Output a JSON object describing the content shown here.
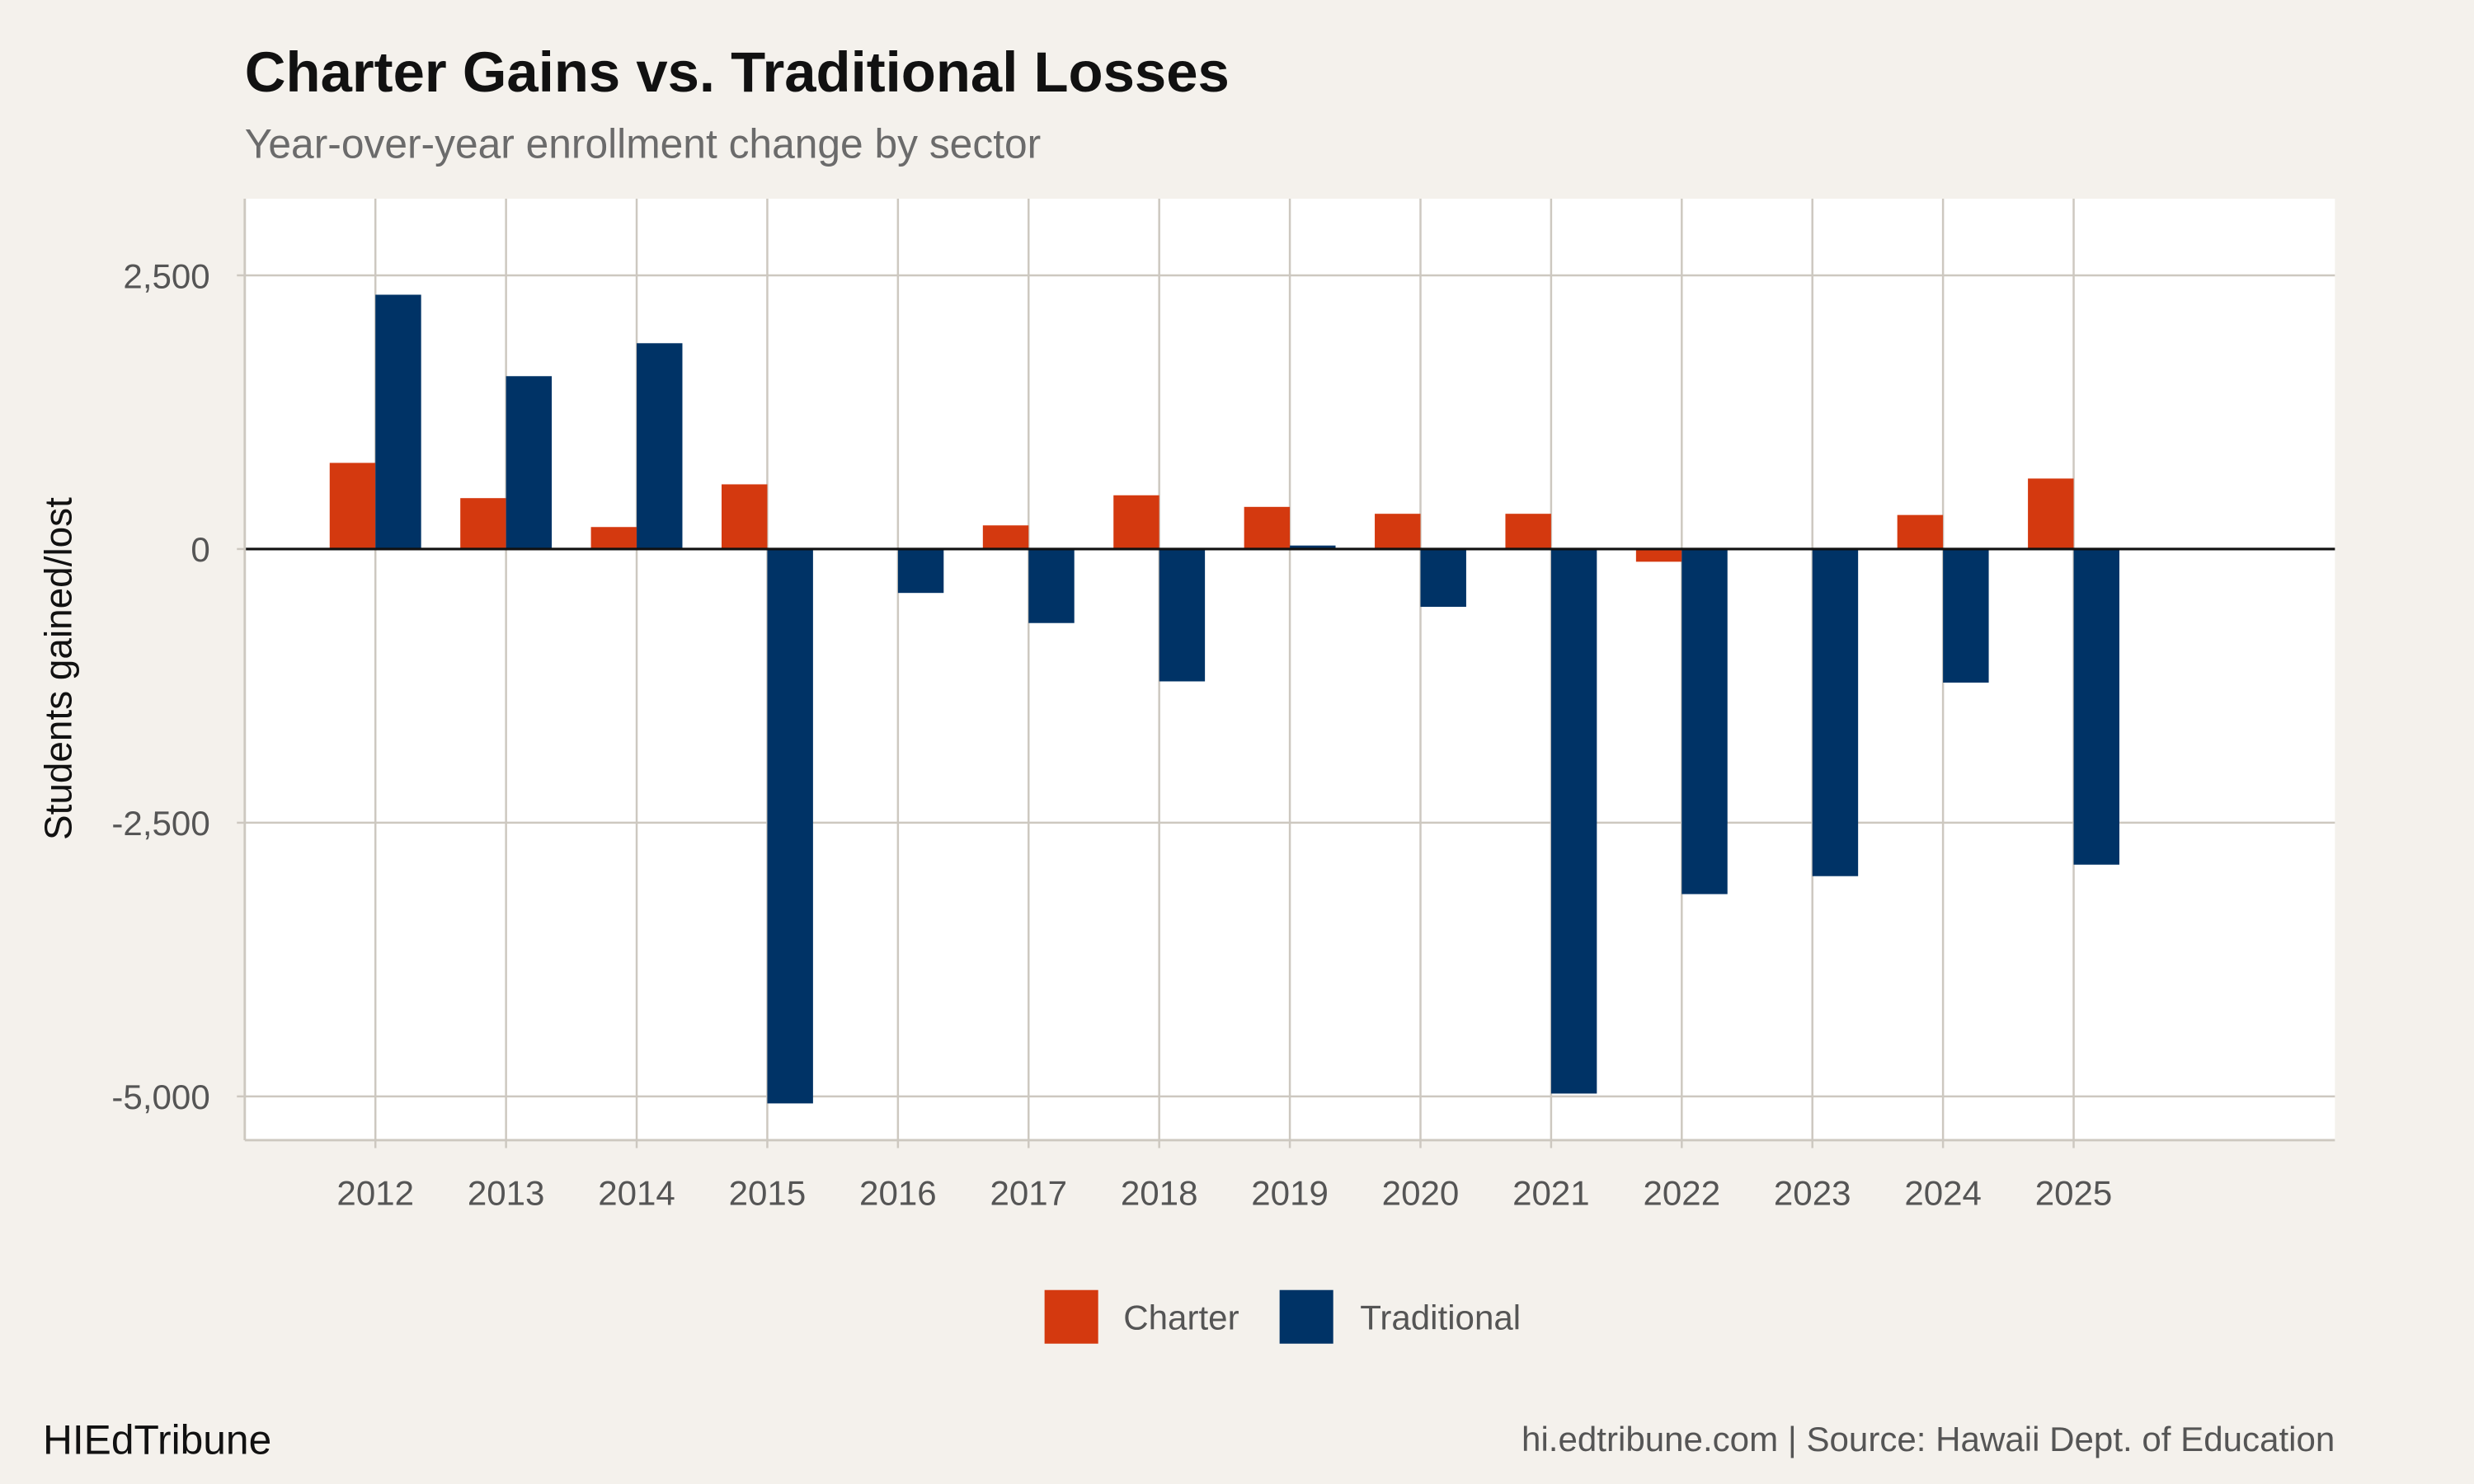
{
  "chart_data": {
    "type": "bar",
    "title": "Charter Gains vs. Traditional Losses",
    "subtitle": "Year-over-year enrollment change by sector",
    "xlabel": "",
    "ylabel": "Students gained/lost",
    "categories": [
      "2012",
      "2013",
      "2014",
      "2015",
      "2016",
      "2017",
      "2018",
      "2019",
      "2020",
      "2021",
      "2022",
      "2023",
      "2024",
      "2025"
    ],
    "series": [
      {
        "name": "Charter",
        "color": "#d4390f",
        "values": [
          787,
          465,
          201,
          591,
          0,
          216,
          491,
          385,
          322,
          322,
          -116,
          0,
          311,
          644
        ]
      },
      {
        "name": "Traditional",
        "color": "#003366",
        "values": [
          2323,
          1579,
          1880,
          -5064,
          -401,
          -676,
          -1209,
          32,
          -528,
          -4974,
          -3152,
          -2988,
          -1220,
          -2883
        ]
      }
    ],
    "ylim": [
      -5400,
      3200
    ],
    "xlim": [
      2011,
      2027
    ],
    "yticks": [
      2500,
      0,
      -2500,
      -5000
    ],
    "ytick_labels": [
      "2,500",
      "0",
      "-2,500",
      "-5,000"
    ],
    "grid": true,
    "legend_position": "bottom"
  },
  "footer": {
    "brand": "HIEdTribune",
    "caption": "hi.edtribune.com | Source: Hawaii Dept. of Education"
  },
  "colors": {
    "background": "#f4f1ec",
    "panel": "#ffffff",
    "grid": "#cdc8c0"
  }
}
